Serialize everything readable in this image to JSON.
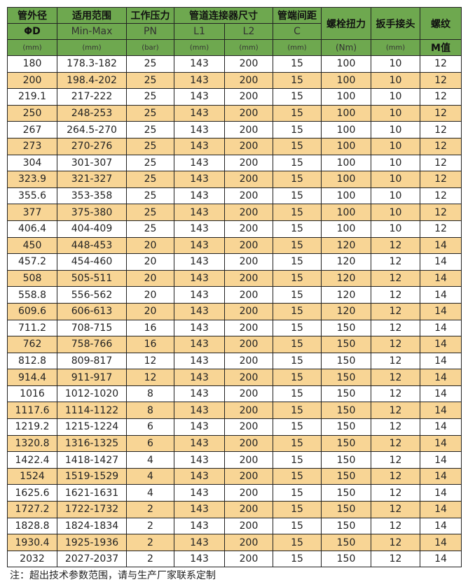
{
  "header": {
    "row1": [
      "管外径",
      "适用范围",
      "工作压力",
      "管道连接器尺寸",
      "管端间距",
      "螺栓扭力",
      "扳手接头",
      "螺纹"
    ],
    "row2": [
      "ΦD",
      "Min-Max",
      "PN",
      "L1",
      "L2",
      "C"
    ],
    "row3": [
      "(mm)",
      "(mm)",
      "(bar)",
      "(mm)",
      "(mm)",
      "(mm)",
      "(Nm)",
      "(mm)",
      "M值"
    ]
  },
  "colors": {
    "header_green": "#6ea84f",
    "stripe_yellow": "#f8d595"
  },
  "rows": [
    [
      "180",
      "178.3-182",
      "25",
      "143",
      "200",
      "15",
      "100",
      "10",
      "12"
    ],
    [
      "200",
      "198.4-202",
      "25",
      "143",
      "200",
      "15",
      "100",
      "10",
      "12"
    ],
    [
      "219.1",
      "217-222",
      "25",
      "143",
      "200",
      "15",
      "100",
      "10",
      "12"
    ],
    [
      "250",
      "248-253",
      "25",
      "143",
      "200",
      "15",
      "100",
      "10",
      "12"
    ],
    [
      "267",
      "264.5-270",
      "25",
      "143",
      "200",
      "15",
      "100",
      "10",
      "12"
    ],
    [
      "273",
      "270-276",
      "25",
      "143",
      "200",
      "15",
      "100",
      "10",
      "12"
    ],
    [
      "304",
      "301-307",
      "25",
      "143",
      "200",
      "15",
      "100",
      "10",
      "12"
    ],
    [
      "323.9",
      "321-327",
      "25",
      "143",
      "200",
      "15",
      "100",
      "10",
      "12"
    ],
    [
      "355.6",
      "353-358",
      "25",
      "143",
      "200",
      "15",
      "100",
      "10",
      "12"
    ],
    [
      "377",
      "375-380",
      "25",
      "143",
      "200",
      "15",
      "100",
      "10",
      "12"
    ],
    [
      "406.4",
      "404-409",
      "25",
      "143",
      "200",
      "15",
      "100",
      "10",
      "12"
    ],
    [
      "450",
      "448-453",
      "20",
      "143",
      "200",
      "15",
      "120",
      "12",
      "14"
    ],
    [
      "457.2",
      "454-460",
      "20",
      "143",
      "200",
      "15",
      "120",
      "12",
      "14"
    ],
    [
      "508",
      "505-511",
      "20",
      "143",
      "200",
      "15",
      "120",
      "12",
      "14"
    ],
    [
      "558.8",
      "556-562",
      "20",
      "143",
      "200",
      "15",
      "120",
      "12",
      "14"
    ],
    [
      "609.6",
      "606-613",
      "20",
      "143",
      "200",
      "15",
      "120",
      "12",
      "14"
    ],
    [
      "711.2",
      "708-715",
      "16",
      "143",
      "200",
      "15",
      "150",
      "12",
      "14"
    ],
    [
      "762",
      "758-766",
      "16",
      "143",
      "200",
      "15",
      "150",
      "12",
      "14"
    ],
    [
      "812.8",
      "809-817",
      "12",
      "143",
      "200",
      "15",
      "150",
      "12",
      "14"
    ],
    [
      "914.4",
      "911-917",
      "12",
      "143",
      "200",
      "15",
      "150",
      "12",
      "14"
    ],
    [
      "1016",
      "1012-1020",
      "8",
      "143",
      "200",
      "15",
      "150",
      "12",
      "14"
    ],
    [
      "1117.6",
      "1114-1122",
      "8",
      "143",
      "200",
      "15",
      "150",
      "12",
      "14"
    ],
    [
      "1219.2",
      "1215-1224",
      "6",
      "143",
      "200",
      "15",
      "150",
      "12",
      "14"
    ],
    [
      "1320.8",
      "1316-1325",
      "6",
      "143",
      "200",
      "15",
      "150",
      "12",
      "14"
    ],
    [
      "1422.4",
      "1418-1427",
      "4",
      "143",
      "200",
      "15",
      "150",
      "12",
      "14"
    ],
    [
      "1524",
      "1519-1529",
      "4",
      "143",
      "200",
      "15",
      "150",
      "12",
      "14"
    ],
    [
      "1625.6",
      "1621-1631",
      "4",
      "143",
      "200",
      "15",
      "150",
      "12",
      "14"
    ],
    [
      "1727.2",
      "1722-1732",
      "2",
      "143",
      "200",
      "15",
      "150",
      "12",
      "14"
    ],
    [
      "1828.8",
      "1824-1834",
      "2",
      "143",
      "200",
      "15",
      "150",
      "12",
      "14"
    ],
    [
      "1930.4",
      "1925-1936",
      "2",
      "143",
      "200",
      "15",
      "150",
      "12",
      "14"
    ],
    [
      "2032",
      "2027-2037",
      "2",
      "143",
      "200",
      "15",
      "150",
      "12",
      "14"
    ]
  ],
  "note": "注：超出技术参数范围，请与生产厂家联系定制"
}
